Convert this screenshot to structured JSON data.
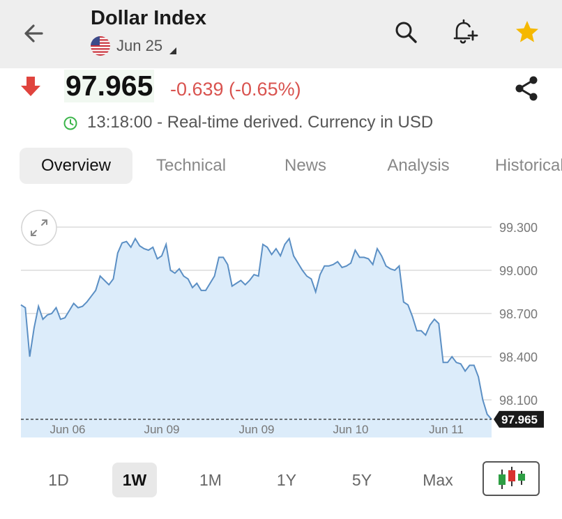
{
  "header": {
    "title": "Dollar Index",
    "date": "Jun 25"
  },
  "quote": {
    "price": "97.965",
    "change": "-0.639 (-0.65%)",
    "time_text": "13:18:00 - Real-time derived. Currency in USD"
  },
  "tabs": [
    {
      "label": "Overview",
      "active": true
    },
    {
      "label": "Technical",
      "active": false
    },
    {
      "label": "News",
      "active": false
    },
    {
      "label": "Analysis",
      "active": false
    },
    {
      "label": "Historical",
      "active": false
    }
  ],
  "ranges": [
    {
      "label": "1D",
      "active": false
    },
    {
      "label": "1W",
      "active": true
    },
    {
      "label": "1M",
      "active": false
    },
    {
      "label": "1Y",
      "active": false
    },
    {
      "label": "5Y",
      "active": false
    },
    {
      "label": "Max",
      "active": false
    }
  ],
  "colors": {
    "down": "#d9534f",
    "line": "#5b8fc4",
    "fill": "#dcecfa",
    "star": "#f5b800",
    "candle_green": "#2e9e44",
    "candle_red": "#d9322f"
  },
  "icons": {
    "back": "arrow-left-icon",
    "search": "search-icon",
    "alert": "bell-plus-icon",
    "watchlist": "star-icon",
    "share": "share-icon",
    "expand": "expand-icon",
    "chart_type": "candlestick-icon"
  },
  "chart_data": {
    "type": "area",
    "yticks": [
      "99.300",
      "99.000",
      "98.700",
      "98.400",
      "98.100"
    ],
    "ylim": [
      97.95,
      99.3
    ],
    "xticks": [
      "Jun 06",
      "Jun 09",
      "Jun 09",
      "Jun 10",
      "Jun 11"
    ],
    "last_label": "97.965",
    "grid": true,
    "values": [
      98.76,
      98.74,
      98.4,
      98.6,
      98.75,
      98.66,
      98.69,
      98.7,
      98.74,
      98.66,
      98.67,
      98.72,
      98.77,
      98.74,
      98.75,
      98.78,
      98.82,
      98.86,
      98.96,
      98.93,
      98.9,
      98.94,
      99.12,
      99.19,
      99.2,
      99.16,
      99.22,
      99.17,
      99.15,
      99.14,
      99.16,
      99.08,
      99.1,
      99.18,
      99.0,
      98.98,
      99.01,
      98.96,
      98.94,
      98.88,
      98.91,
      98.86,
      98.86,
      98.91,
      98.96,
      99.09,
      99.09,
      99.04,
      98.89,
      98.91,
      98.93,
      98.9,
      98.93,
      98.97,
      98.96,
      99.18,
      99.16,
      99.11,
      99.15,
      99.1,
      99.18,
      99.22,
      99.1,
      99.05,
      99.0,
      98.96,
      98.94,
      98.85,
      98.97,
      99.03,
      99.03,
      99.04,
      99.06,
      99.02,
      99.03,
      99.05,
      99.14,
      99.09,
      99.09,
      99.08,
      99.04,
      99.15,
      99.1,
      99.03,
      99.01,
      99.0,
      99.03,
      98.78,
      98.76,
      98.68,
      98.58,
      98.58,
      98.55,
      98.62,
      98.66,
      98.63,
      98.36,
      98.36,
      98.4,
      98.36,
      98.35,
      98.3,
      98.34,
      98.34,
      98.26,
      98.1,
      98.0,
      97.965
    ]
  }
}
